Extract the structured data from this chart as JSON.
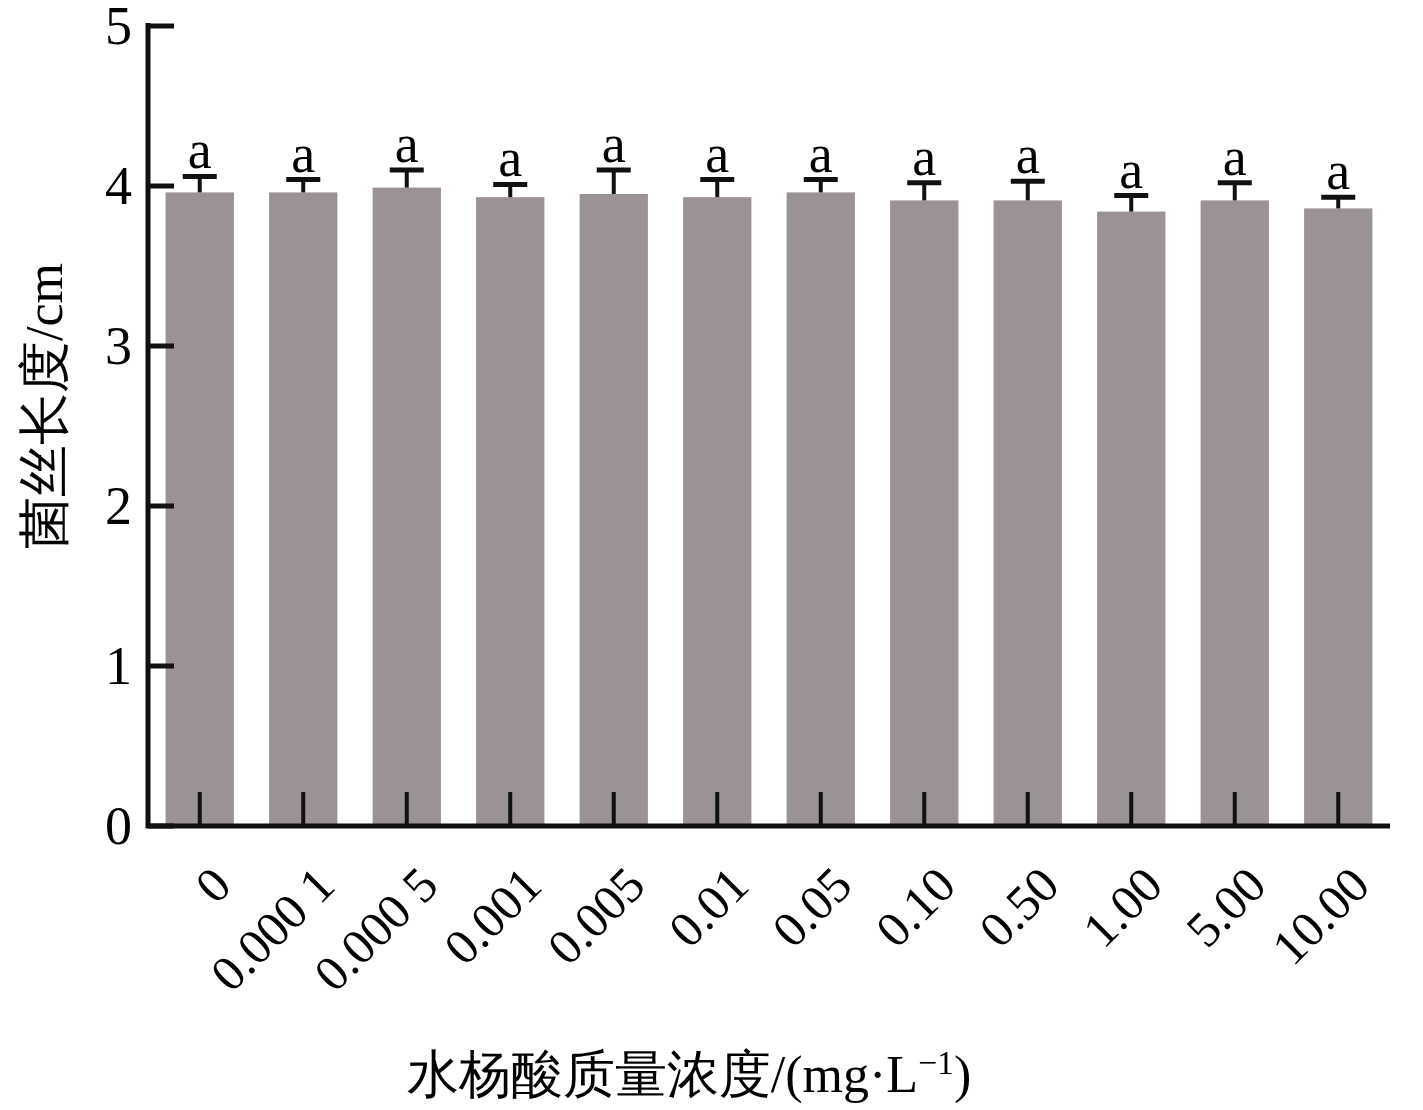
{
  "chart_data": {
    "type": "bar",
    "xlabel": "水杨酸质量浓度/(mg·L$^{−1}$)",
    "ylabel": "菌丝长度/cm",
    "categories": [
      "0",
      "0.000 1",
      "0.000 5",
      "0.001",
      "0.005",
      "0.01",
      "0.05",
      "0.10",
      "0.50",
      "1.00",
      "5.00",
      "10.00"
    ],
    "values": [
      3.96,
      3.96,
      3.99,
      3.93,
      3.95,
      3.93,
      3.96,
      3.91,
      3.91,
      3.84,
      3.91,
      3.86
    ],
    "errors": [
      [
        3.96,
        4.06
      ],
      [
        3.96,
        4.04
      ],
      [
        3.99,
        4.1
      ],
      [
        3.93,
        4.01
      ],
      [
        3.95,
        4.1
      ],
      [
        3.93,
        4.04
      ],
      [
        3.96,
        4.04
      ],
      [
        3.91,
        4.02
      ],
      [
        3.91,
        4.03
      ],
      [
        3.84,
        3.94
      ],
      [
        3.91,
        4.02
      ],
      [
        3.86,
        3.93
      ]
    ],
    "color": "#9b9393",
    "ylim": [
      0,
      5
    ],
    "yticks": [
      0,
      1,
      2,
      3,
      4,
      5
    ],
    "grid": false,
    "annotations": [
      {
        "text": "a",
        "x": "0",
        "y": 4.06
      },
      {
        "text": "a",
        "x": "0.000 1",
        "y": 4.04
      },
      {
        "text": "a",
        "x": "0.000 5",
        "y": 4.1
      },
      {
        "text": "a",
        "x": "0.001",
        "y": 4.01
      },
      {
        "text": "a",
        "x": "0.005",
        "y": 4.1
      },
      {
        "text": "a",
        "x": "0.01",
        "y": 4.04
      },
      {
        "text": "a",
        "x": "0.05",
        "y": 4.04
      },
      {
        "text": "a",
        "x": "0.10",
        "y": 4.02
      },
      {
        "text": "a",
        "x": "0.50",
        "y": 4.03
      },
      {
        "text": "a",
        "x": "1.00",
        "y": 3.94
      },
      {
        "text": "a",
        "x": "5.00",
        "y": 4.02
      },
      {
        "text": "a",
        "x": "10.00",
        "y": 3.93
      }
    ]
  }
}
